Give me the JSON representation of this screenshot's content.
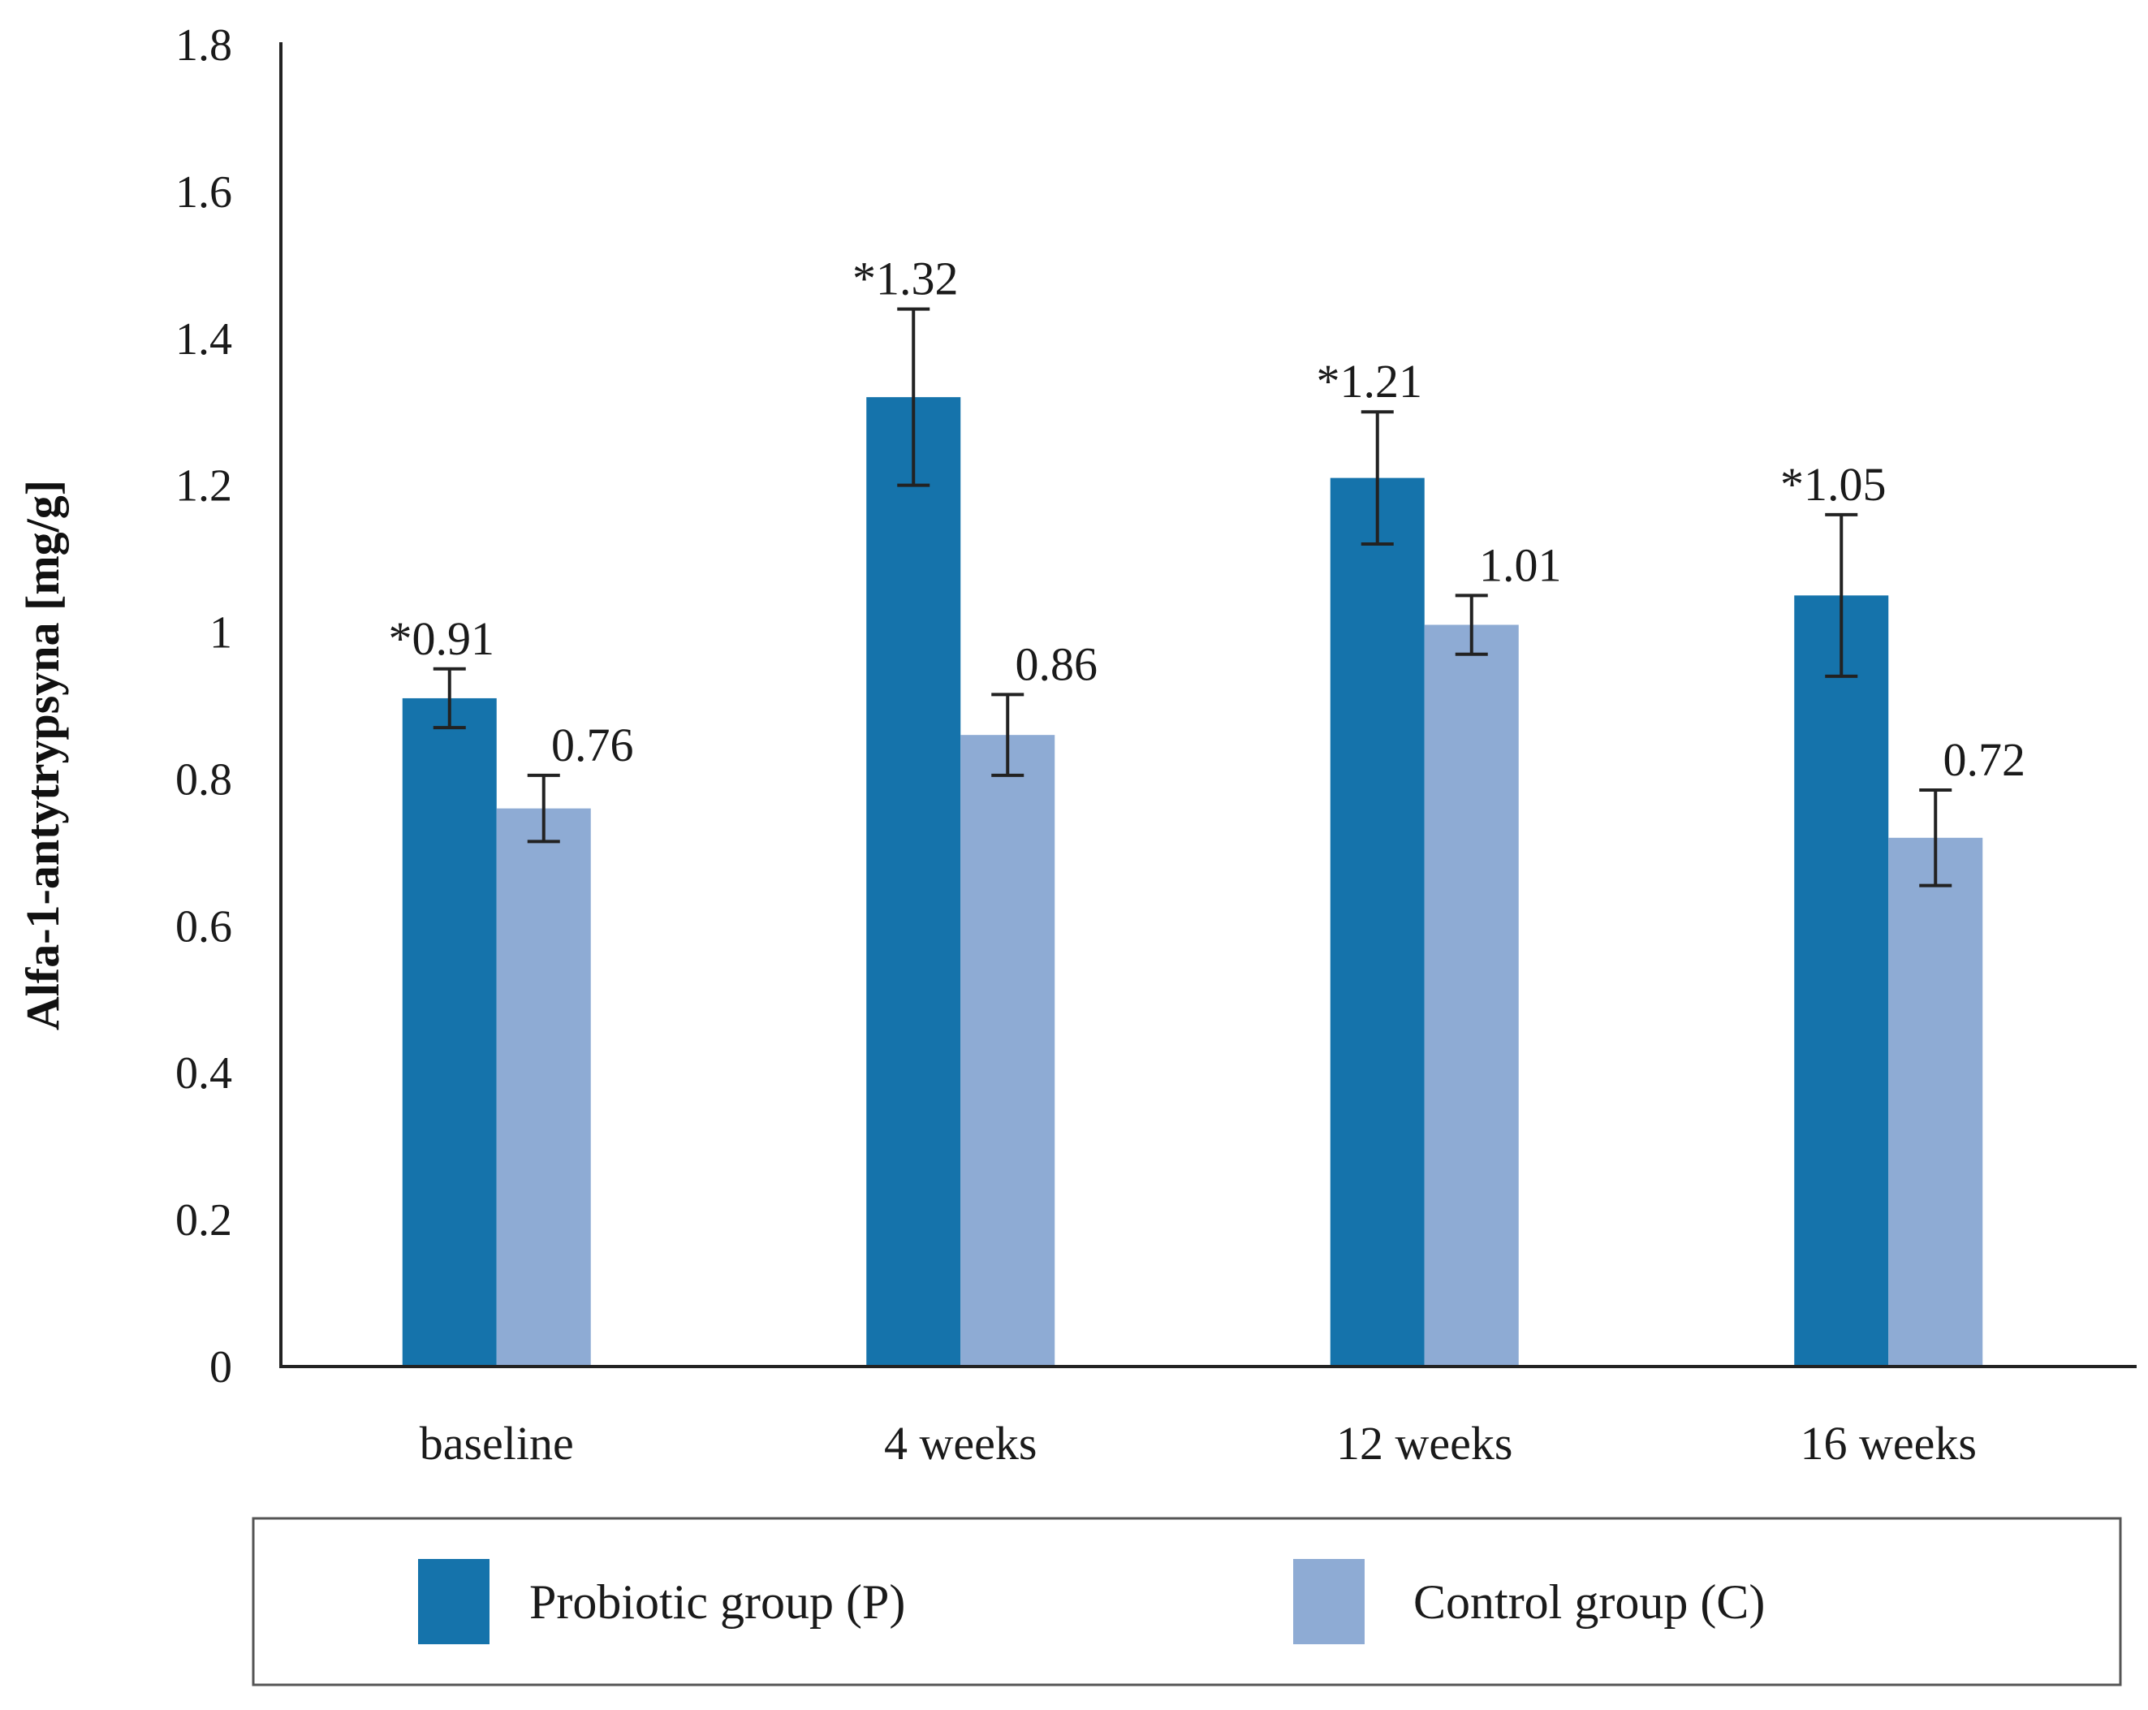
{
  "chart_data": {
    "type": "bar",
    "title": "",
    "xlabel": "",
    "ylabel": "Alfa-1-antytrypsyna [mg/g]",
    "ylim": [
      0,
      1.8
    ],
    "yticks": [
      0,
      0.2,
      0.4,
      0.6,
      0.8,
      1,
      1.2,
      1.4,
      1.6,
      1.8
    ],
    "ytick_labels": [
      "0",
      "0.2",
      "0.4",
      "0.6",
      "0.8",
      "1",
      "1.2",
      "1.4",
      "1.6",
      "1.8"
    ],
    "grid": false,
    "legend_position": "bottom",
    "categories": [
      "baseline",
      "4 weeks",
      "12 weeks",
      "16 weeks"
    ],
    "series": [
      {
        "name": "Probiotic group (P)",
        "color": "#1573ab",
        "values": [
          0.91,
          1.32,
          1.21,
          1.05
        ],
        "errors": [
          0.04,
          0.12,
          0.09,
          0.11
        ],
        "labels": [
          "*0.91",
          "*1.32",
          "*1.21",
          "*1.05"
        ]
      },
      {
        "name": "Control group (C)",
        "color": "#8eabd4",
        "values": [
          0.76,
          0.86,
          1.01,
          0.72
        ],
        "errors": [
          0.045,
          0.055,
          0.04,
          0.065
        ],
        "labels": [
          "0.76",
          "0.86",
          "1.01",
          "0.72"
        ]
      }
    ]
  }
}
